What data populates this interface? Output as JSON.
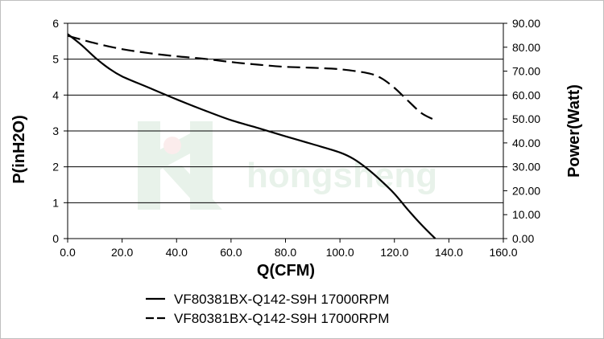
{
  "chart_data": {
    "type": "line",
    "xlabel": "Q(CFM)",
    "ylabel_left": "P(inH2O)",
    "ylabel_right": "Power(Watt)",
    "xlim": [
      0,
      160
    ],
    "ylim_left": [
      0,
      6
    ],
    "ylim_right": [
      0,
      90
    ],
    "x_ticks": [
      "0.0",
      "20.0",
      "40.0",
      "60.0",
      "80.0",
      "100.0",
      "120.0",
      "140.0",
      "160.0"
    ],
    "y_left_ticks": [
      "0",
      "1",
      "2",
      "3",
      "4",
      "5",
      "6"
    ],
    "y_right_ticks": [
      "0.00",
      "10.00",
      "20.00",
      "30.00",
      "40.00",
      "50.00",
      "60.00",
      "70.00",
      "80.00",
      "90.00"
    ],
    "grid": "horizontal",
    "legend_position": "bottom",
    "watermark": "hongsheng",
    "series": [
      {
        "name": "VF80381BX-Q142-S9H 17000RPM",
        "axis": "left",
        "style": "solid",
        "points": [
          [
            0,
            5.7
          ],
          [
            5,
            5.4
          ],
          [
            10,
            5.05
          ],
          [
            15,
            4.75
          ],
          [
            20,
            4.52
          ],
          [
            30,
            4.2
          ],
          [
            40,
            3.88
          ],
          [
            50,
            3.58
          ],
          [
            60,
            3.3
          ],
          [
            70,
            3.08
          ],
          [
            80,
            2.85
          ],
          [
            90,
            2.63
          ],
          [
            100,
            2.4
          ],
          [
            105,
            2.22
          ],
          [
            110,
            1.95
          ],
          [
            115,
            1.62
          ],
          [
            120,
            1.25
          ],
          [
            125,
            0.8
          ],
          [
            130,
            0.38
          ],
          [
            135,
            0
          ]
        ]
      },
      {
        "name": "VF80381BX-Q142-S9H 17000RPM",
        "axis": "right",
        "style": "dashed",
        "points": [
          [
            0,
            84.8
          ],
          [
            10,
            81.7
          ],
          [
            20,
            79.2
          ],
          [
            30,
            77.5
          ],
          [
            40,
            76.2
          ],
          [
            50,
            75.2
          ],
          [
            60,
            73.8
          ],
          [
            70,
            72.7
          ],
          [
            80,
            71.8
          ],
          [
            90,
            71.4
          ],
          [
            100,
            70.8
          ],
          [
            110,
            69.2
          ],
          [
            115,
            67.2
          ],
          [
            120,
            63.0
          ],
          [
            125,
            57.6
          ],
          [
            130,
            52.4
          ],
          [
            135,
            49.5
          ]
        ]
      }
    ]
  }
}
